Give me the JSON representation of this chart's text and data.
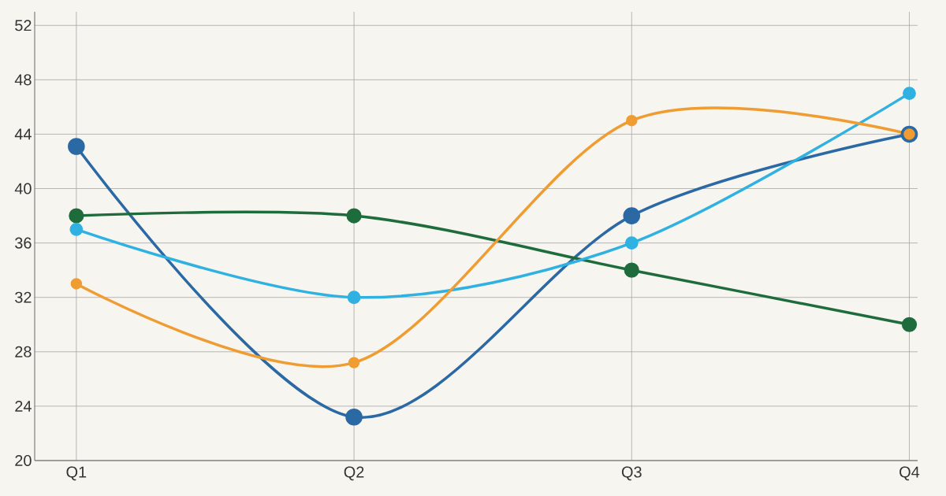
{
  "chart_data": {
    "type": "line",
    "categories": [
      "Q1",
      "Q2",
      "Q3",
      "Q4"
    ],
    "series": [
      {
        "color": "#2b69a5",
        "values": [
          43.1,
          23.2,
          38,
          44
        ]
      },
      {
        "color": "#1e6b3c",
        "values": [
          38,
          38,
          34,
          30
        ]
      },
      {
        "color": "#2fb1e1",
        "values": [
          37,
          32,
          36,
          47
        ]
      },
      {
        "color": "#ef9c32",
        "values": [
          33,
          27.2,
          45,
          44
        ]
      }
    ],
    "ylim": [
      20,
      53
    ],
    "yticks": [
      20,
      24,
      28,
      32,
      36,
      40,
      44,
      48,
      52
    ],
    "grid": true,
    "marker": "circle",
    "line_style": "solid"
  }
}
